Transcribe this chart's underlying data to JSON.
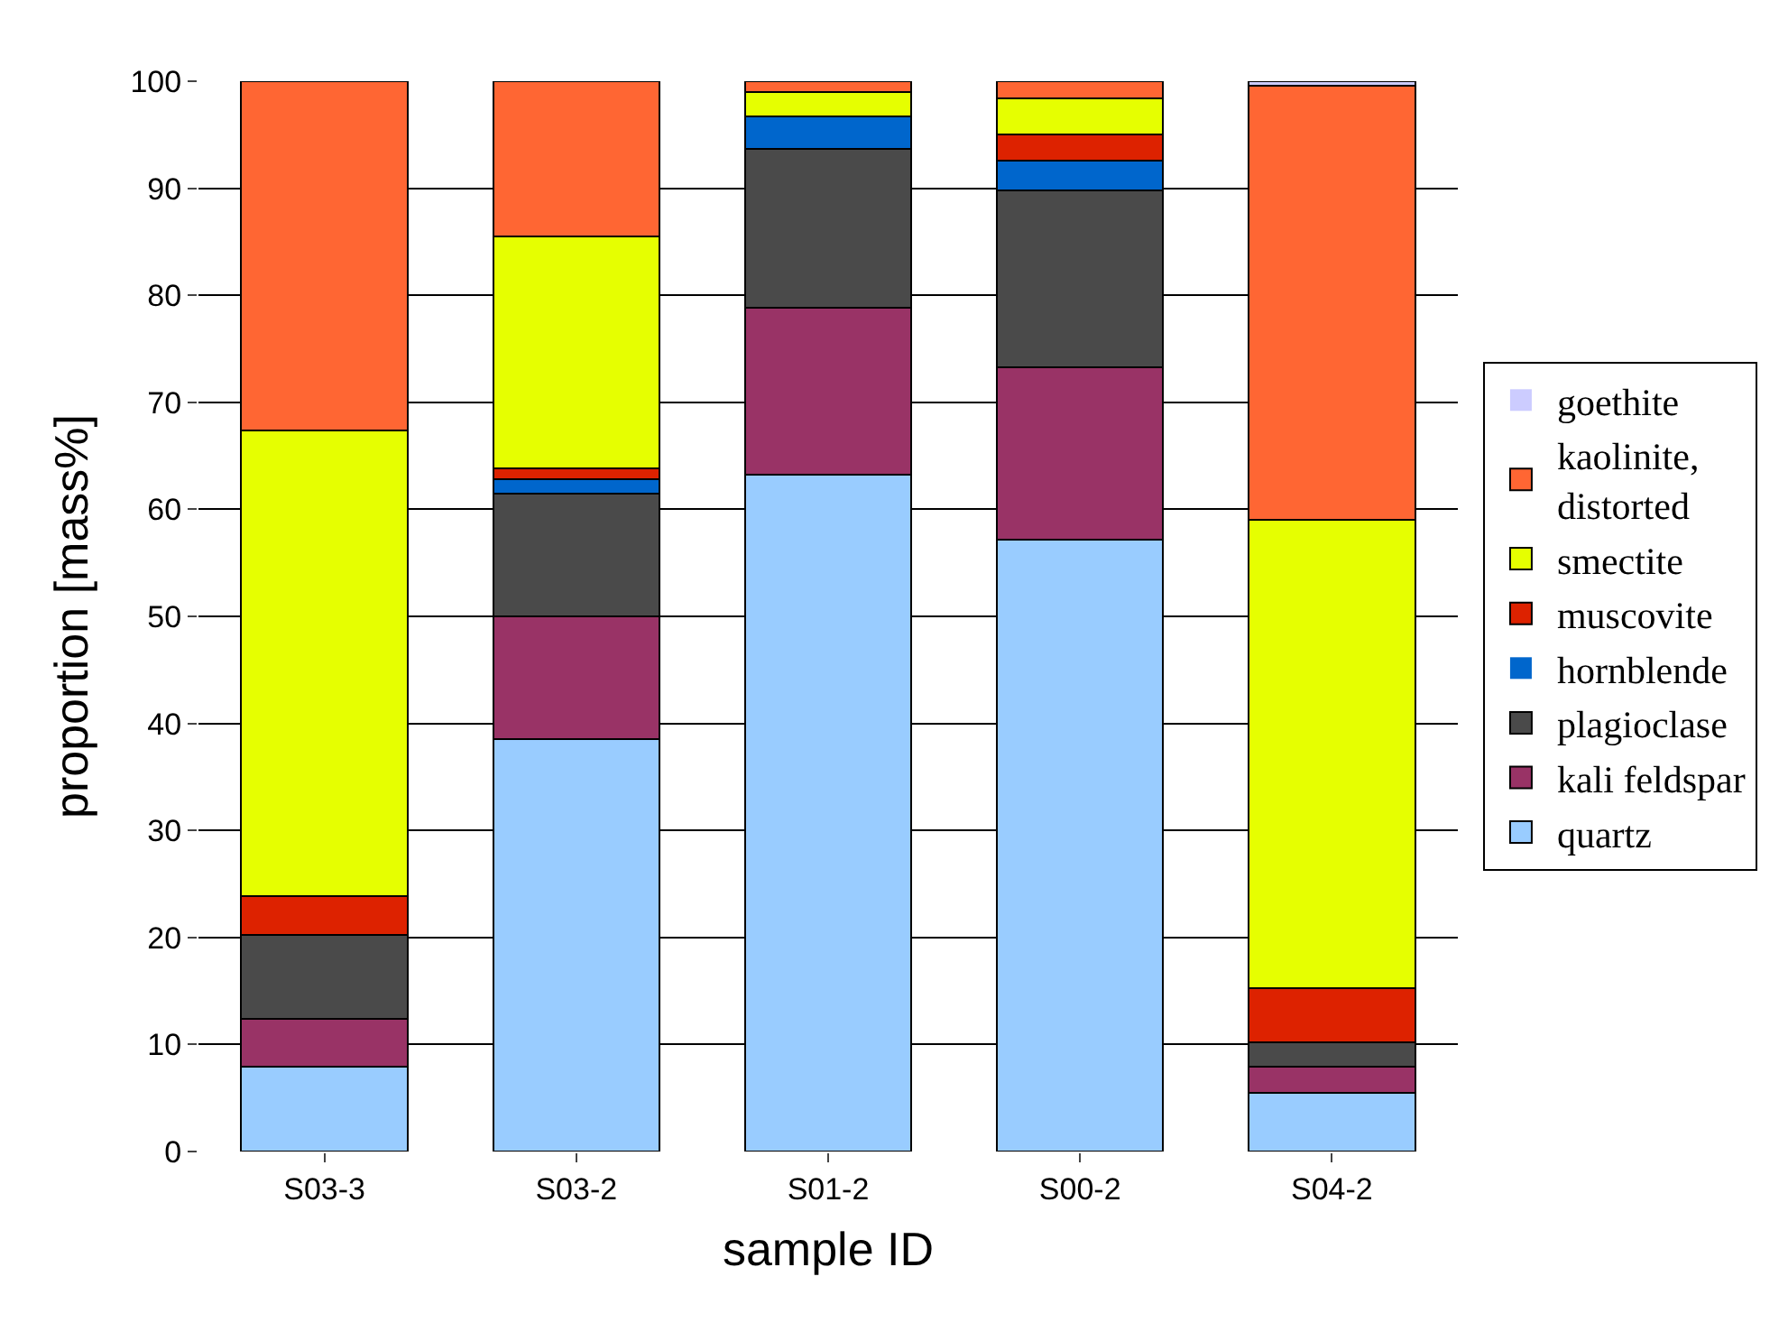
{
  "chart_data": {
    "type": "bar",
    "stacked": true,
    "xlabel": "sample ID",
    "ylabel": "proportion [mass%]",
    "categories": [
      "S03-3",
      "S03-2",
      "S01-2",
      "S00-2",
      "S04-2"
    ],
    "series": [
      {
        "name": "quartz",
        "color": "#99ccff",
        "values": [
          7.9,
          38.5,
          63.2,
          57.2,
          5.5
        ]
      },
      {
        "name": "kali feldspar",
        "color": "#993366",
        "values": [
          4.5,
          11.5,
          15.6,
          16.1,
          2.4
        ]
      },
      {
        "name": "plagioclase",
        "color": "#4a4a4a",
        "values": [
          7.8,
          11.5,
          14.9,
          16.5,
          2.3
        ]
      },
      {
        "name": "hornblende",
        "color": "#0066cc",
        "values": [
          0,
          1.3,
          3.0,
          2.8,
          0
        ]
      },
      {
        "name": "muscovite",
        "color": "#dd2200",
        "values": [
          3.7,
          1.0,
          0,
          2.4,
          5.1
        ]
      },
      {
        "name": "smectite",
        "color": "#e6ff00",
        "values": [
          43.5,
          21.7,
          2.3,
          3.4,
          43.7
        ]
      },
      {
        "name": "kaolinite, distorted",
        "color": "#ff6633",
        "values": [
          32.6,
          14.5,
          1.0,
          1.6,
          40.6
        ]
      },
      {
        "name": "goethite",
        "color": "#ccccff",
        "values": [
          0,
          0,
          0,
          0,
          0.4
        ]
      }
    ],
    "ylim": [
      0,
      100
    ],
    "yticks": [
      0,
      10,
      20,
      30,
      40,
      50,
      60,
      70,
      80,
      90,
      100
    ],
    "grid": "y",
    "legend": "right"
  }
}
